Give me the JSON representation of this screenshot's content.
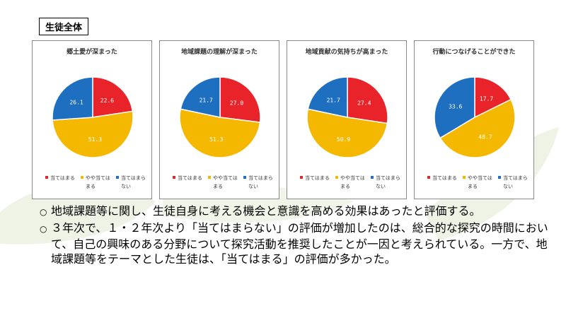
{
  "section_label": "生徒全体",
  "colors": {
    "red": "#e8242a",
    "yellow": "#f5b800",
    "blue": "#1f6fc1"
  },
  "legend": [
    {
      "label": "当てはまる",
      "color": "#e8242a"
    },
    {
      "label": "やや当てはまる",
      "color": "#f5b800"
    },
    {
      "label": "当てはまらない",
      "color": "#1f6fc1"
    }
  ],
  "chart_data": [
    {
      "type": "pie",
      "title": "郷土愛が深まった",
      "categories": [
        "当てはまる",
        "やや当てはまる",
        "当てはまらない"
      ],
      "values": [
        22.6,
        51.3,
        26.1
      ],
      "value_labels": [
        "22.6",
        "51.3",
        "26.1"
      ],
      "colors": [
        "#e8242a",
        "#f5b800",
        "#1f6fc1"
      ],
      "legend_position": "bottom"
    },
    {
      "type": "pie",
      "title": "地域課題の理解が深まった",
      "categories": [
        "当てはまる",
        "やや当てはまる",
        "当てはまらない"
      ],
      "values": [
        27.0,
        51.3,
        21.7
      ],
      "value_labels": [
        "27.0",
        "51.3",
        "21.7"
      ],
      "colors": [
        "#e8242a",
        "#f5b800",
        "#1f6fc1"
      ],
      "legend_position": "bottom"
    },
    {
      "type": "pie",
      "title": "地域貢献の気持ちが高まった",
      "categories": [
        "当てはまる",
        "やや当てはまる",
        "当てはまらない"
      ],
      "values": [
        27.4,
        50.9,
        21.7
      ],
      "value_labels": [
        "27.4",
        "50.9",
        "21.7"
      ],
      "colors": [
        "#e8242a",
        "#f5b800",
        "#1f6fc1"
      ],
      "legend_position": "bottom"
    },
    {
      "type": "pie",
      "title": "行動につなげることができた",
      "categories": [
        "当てはまる",
        "やや当てはまる",
        "当てはまらない"
      ],
      "values": [
        17.7,
        48.7,
        33.6
      ],
      "value_labels": [
        "17.7",
        "48.7",
        "33.6"
      ],
      "colors": [
        "#e8242a",
        "#f5b800",
        "#1f6fc1"
      ],
      "legend_position": "bottom"
    }
  ],
  "notes": [
    {
      "bullet": "○",
      "text": "地域課題等に関し、生徒自身に考える機会と意識を高める効果はあったと評価する。"
    },
    {
      "bullet": "○",
      "text": "３年次で、１・２年次より「当てはまらない」の評価が増加したのは、総合的な探究の時間において、自己の興味のある分野について探究活動を推奨したことが一因と考えられている。一方で、地域課題等をテーマとした生徒は、「当てはまる」の評価が多かった。"
    }
  ]
}
